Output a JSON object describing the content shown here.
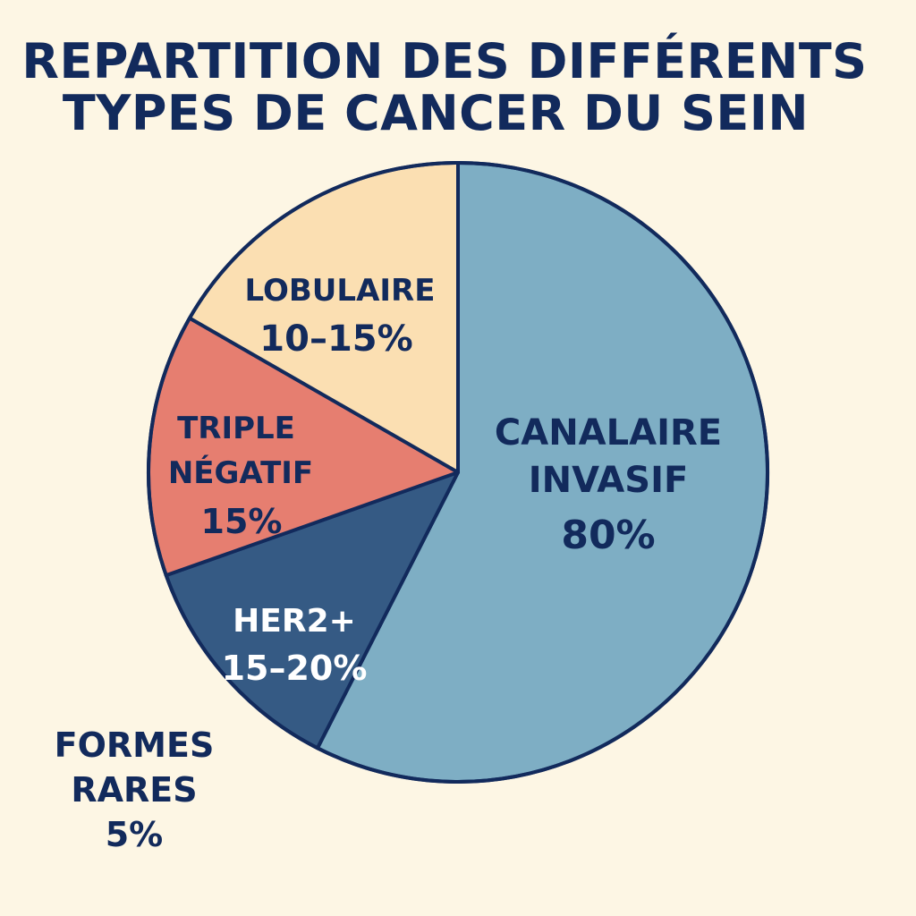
{
  "chart_data": {
    "type": "pie",
    "title": [
      "REPARTITION DES DIFFÉRENTS",
      "TYPES DE CANCER DU SEIN"
    ],
    "legend": "none",
    "slices": [
      {
        "label_lines": [
          "CANALAIRE",
          "INVASIF"
        ],
        "value_label": "80%",
        "value": 80,
        "display_share": 0.575,
        "color": "#7eaec4",
        "text_color": "#122a5c"
      },
      {
        "label_lines": [
          "HER2+"
        ],
        "value_label": "15–20%",
        "value": 17.5,
        "display_share": 0.121,
        "color": "#355a84",
        "text_color": "#ffffff"
      },
      {
        "label_lines": [
          "TRIPLE",
          "NÉGATIF"
        ],
        "value_label": "15%",
        "value": 15,
        "display_share": 0.137,
        "color": "#e67e70",
        "text_color": "#122a5c"
      },
      {
        "label_lines": [
          "LOBULAIRE"
        ],
        "value_label": "10–15%",
        "value": 12.5,
        "display_share": 0.167,
        "color": "#fbdfb2",
        "text_color": "#122a5c"
      }
    ],
    "outside": {
      "label_lines": [
        "FORMES",
        "RARES"
      ],
      "value_label": "5%",
      "value": 5
    },
    "outline_color": "#122a5c",
    "background": "#fdf6e4"
  }
}
